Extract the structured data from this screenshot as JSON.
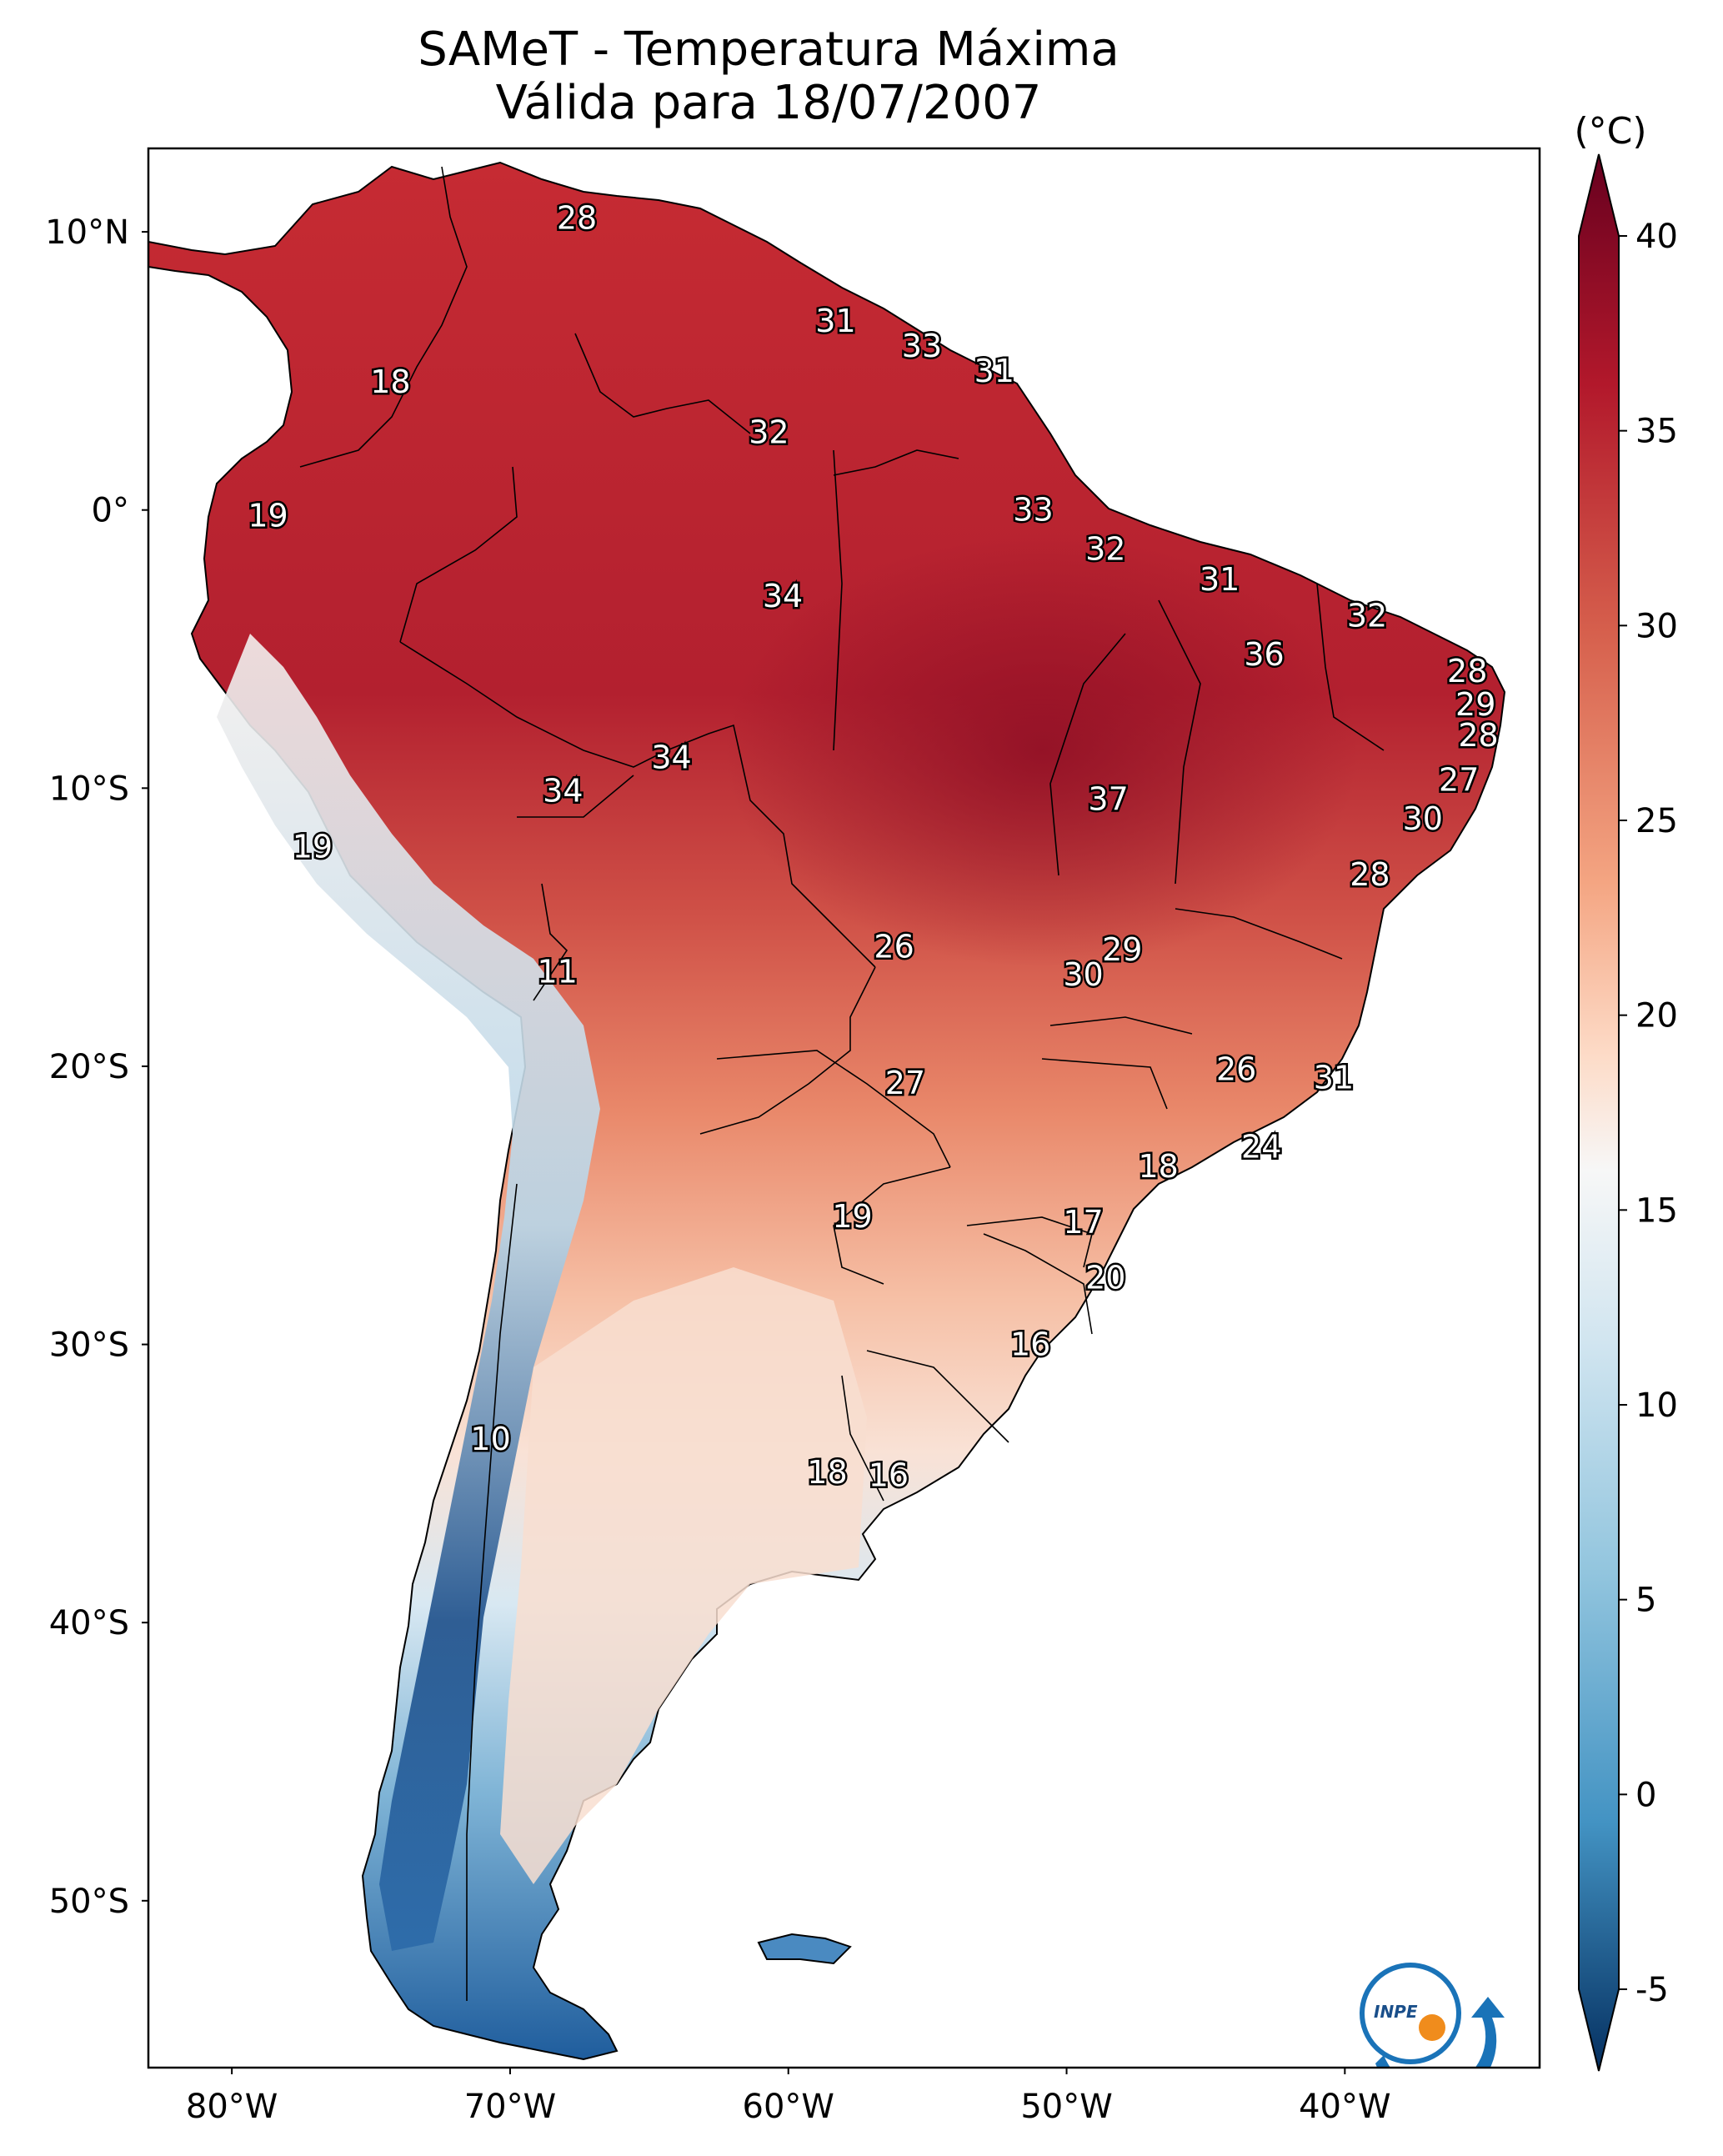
{
  "title": {
    "line1": "SAMeT - Temperatura Máxima",
    "line2": "Válida para 18/07/2007"
  },
  "colorbar": {
    "unit": "(°C)",
    "ticks": [
      "40",
      "35",
      "30",
      "25",
      "20",
      "15",
      "10",
      "5",
      "0",
      "-5"
    ],
    "range": [
      -5,
      40
    ],
    "colormap": "RdBu_r",
    "extend": "both"
  },
  "axes": {
    "lon_ticks": [
      "80°W",
      "70°W",
      "60°W",
      "50°W",
      "40°W"
    ],
    "lat_ticks": [
      "10°N",
      "0°",
      "10°S",
      "20°S",
      "30°S",
      "40°S",
      "50°S"
    ],
    "lon_range": [
      -83,
      -33
    ],
    "lat_range": [
      -56,
      13
    ]
  },
  "map_labels": [
    {
      "text": "28",
      "lon": -67.6,
      "lat": 10.5
    },
    {
      "text": "18",
      "lon": -74.3,
      "lat": 4.6
    },
    {
      "text": "31",
      "lon": -58.3,
      "lat": 6.8
    },
    {
      "text": "33",
      "lon": -55.2,
      "lat": 5.9
    },
    {
      "text": "31",
      "lon": -52.6,
      "lat": 5.0
    },
    {
      "text": "32",
      "lon": -60.7,
      "lat": 2.8
    },
    {
      "text": "19",
      "lon": -78.7,
      "lat": -0.2
    },
    {
      "text": "33",
      "lon": -51.2,
      "lat": 0.0
    },
    {
      "text": "32",
      "lon": -48.6,
      "lat": -1.4
    },
    {
      "text": "31",
      "lon": -44.5,
      "lat": -2.5
    },
    {
      "text": "34",
      "lon": -60.2,
      "lat": -3.1
    },
    {
      "text": "32",
      "lon": -39.2,
      "lat": -3.8
    },
    {
      "text": "36",
      "lon": -42.9,
      "lat": -5.2
    },
    {
      "text": "28",
      "lon": -35.6,
      "lat": -5.8
    },
    {
      "text": "29",
      "lon": -35.3,
      "lat": -7.0
    },
    {
      "text": "28",
      "lon": -35.2,
      "lat": -8.1
    },
    {
      "text": "34",
      "lon": -64.2,
      "lat": -8.9
    },
    {
      "text": "34",
      "lon": -68.1,
      "lat": -10.1
    },
    {
      "text": "27",
      "lon": -35.9,
      "lat": -9.7
    },
    {
      "text": "37",
      "lon": -48.5,
      "lat": -10.4
    },
    {
      "text": "30",
      "lon": -37.2,
      "lat": -11.1
    },
    {
      "text": "19",
      "lon": -77.1,
      "lat": -12.1
    },
    {
      "text": "28",
      "lon": -39.1,
      "lat": -13.1
    },
    {
      "text": "26",
      "lon": -56.2,
      "lat": -15.7
    },
    {
      "text": "29",
      "lon": -48.0,
      "lat": -15.8
    },
    {
      "text": "30",
      "lon": -49.4,
      "lat": -16.7
    },
    {
      "text": "11",
      "lon": -68.3,
      "lat": -16.6
    },
    {
      "text": "26",
      "lon": -43.9,
      "lat": -20.1
    },
    {
      "text": "27",
      "lon": -55.8,
      "lat": -20.6
    },
    {
      "text": "31",
      "lon": -40.4,
      "lat": -20.4
    },
    {
      "text": "24",
      "lon": -43.0,
      "lat": -22.9
    },
    {
      "text": "18",
      "lon": -46.7,
      "lat": -23.6
    },
    {
      "text": "19",
      "lon": -57.7,
      "lat": -25.4
    },
    {
      "text": "17",
      "lon": -49.4,
      "lat": -25.6
    },
    {
      "text": "20",
      "lon": -48.6,
      "lat": -27.6
    },
    {
      "text": "16",
      "lon": -51.3,
      "lat": -30.0
    },
    {
      "text": "10",
      "lon": -70.7,
      "lat": -33.4
    },
    {
      "text": "18",
      "lon": -58.6,
      "lat": -34.6
    },
    {
      "text": "16",
      "lon": -56.4,
      "lat": -34.7
    }
  ],
  "logo": {
    "text": "INPE"
  },
  "colors": {
    "hot": "#67001f",
    "warm": "#d6604d",
    "neutral": "#f7f7f7",
    "cool": "#4393c3",
    "cold": "#053061"
  }
}
